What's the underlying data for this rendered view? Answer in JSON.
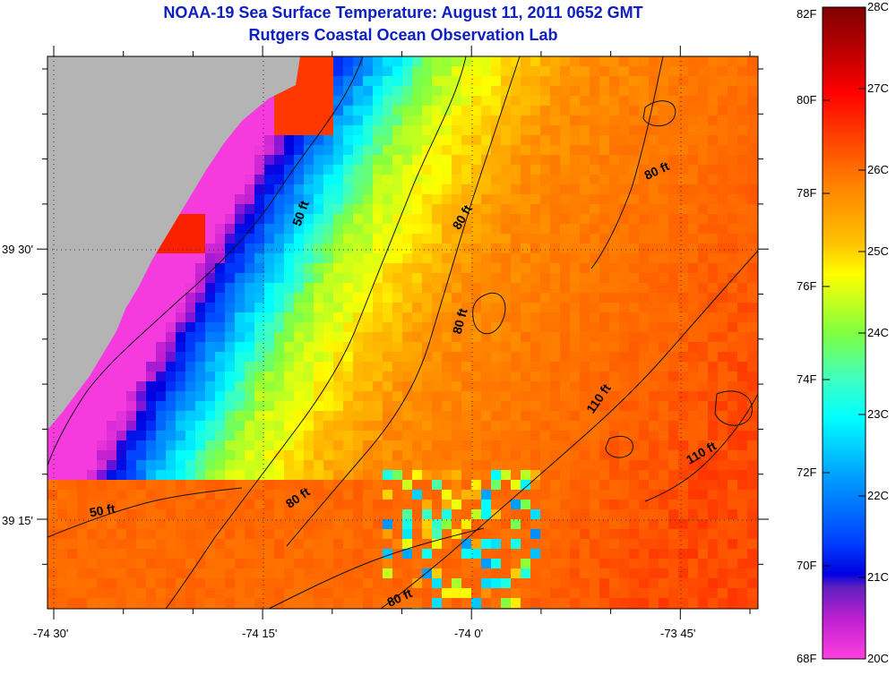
{
  "header": {
    "title": "NOAA-19 Sea Surface Temperature:  August 11, 2011 0652 GMT",
    "subtitle": "Rutgers Coastal Ocean Observation Lab"
  },
  "map": {
    "x_ticks": [
      "-74 30'",
      "-74 15'",
      "-74 0'",
      "-73 45'"
    ],
    "y_ticks": [
      "39 30'",
      "39 15'"
    ],
    "land_color": "#b4b4b4",
    "depth_labels": [
      "50 ft",
      "50 ft",
      "80 ft",
      "80 ft",
      "80 ft",
      "80 ft",
      "80 ft",
      "110 ft",
      "110 ft"
    ]
  },
  "colorbar": {
    "fahrenheit_labels": [
      "82F",
      "80F",
      "78F",
      "76F",
      "74F",
      "72F",
      "70F",
      "68F"
    ],
    "celsius_labels": [
      "28C",
      "27C",
      "26C",
      "25C",
      "24C",
      "23C",
      "22C",
      "21C",
      "20C"
    ]
  }
}
